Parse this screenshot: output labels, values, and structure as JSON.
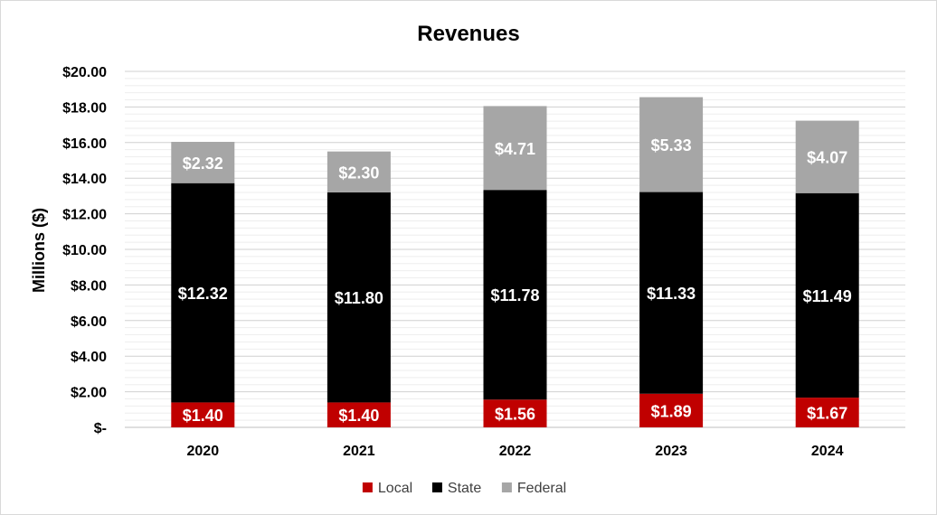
{
  "chart_data": {
    "type": "bar",
    "stacked": true,
    "title": "Revenues",
    "xlabel": "",
    "ylabel": "Millions ($)",
    "categories": [
      "2020",
      "2021",
      "2022",
      "2023",
      "2024"
    ],
    "ylim": [
      0,
      20
    ],
    "yticks": [
      0,
      2,
      4,
      6,
      8,
      10,
      12,
      14,
      16,
      18,
      20
    ],
    "ytick_labels": [
      "$-",
      "$2.00",
      "$4.00",
      "$6.00",
      "$8.00",
      "$10.00",
      "$12.00",
      "$14.00",
      "$16.00",
      "$18.00",
      "$20.00"
    ],
    "grid": true,
    "legend_position": "bottom",
    "series": [
      {
        "name": "Local",
        "color": "#c00000",
        "values": [
          1.4,
          1.4,
          1.56,
          1.89,
          1.67
        ],
        "labels": [
          "$1.40",
          "$1.40",
          "$1.56",
          "$1.89",
          "$1.67"
        ]
      },
      {
        "name": "State",
        "color": "#000000",
        "values": [
          12.32,
          11.8,
          11.78,
          11.33,
          11.49
        ],
        "labels": [
          "$12.32",
          "$11.80",
          "$11.78",
          "$11.33",
          "$11.49"
        ]
      },
      {
        "name": "Federal",
        "color": "#a6a6a6",
        "values": [
          2.32,
          2.3,
          4.71,
          5.33,
          4.07
        ],
        "labels": [
          "$2.32",
          "$2.30",
          "$4.71",
          "$5.33",
          "$4.07"
        ]
      }
    ]
  }
}
